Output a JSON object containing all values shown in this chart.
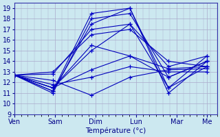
{
  "xlabel": "Température (°c)",
  "background_color": "#cce8f0",
  "grid_color": "#aaaacc",
  "line_color": "#0000bb",
  "marker_color": "#0000cc",
  "ylim": [
    9,
    19.5
  ],
  "yticks": [
    9,
    10,
    11,
    12,
    13,
    14,
    15,
    16,
    17,
    18,
    19
  ],
  "day_labels": [
    "Ven",
    "Sam",
    "Dim",
    "Lun",
    "Mar",
    "Me"
  ],
  "day_ticks": [
    0,
    1,
    2,
    3,
    4,
    4.75
  ],
  "xlim": [
    0,
    5.0
  ],
  "series": [
    [
      12.7,
      12.2,
      10.8,
      12.5,
      13.2,
      13.3
    ],
    [
      12.7,
      11.8,
      12.5,
      13.5,
      13.0,
      13.0
    ],
    [
      12.7,
      11.5,
      13.2,
      14.5,
      13.3,
      13.5
    ],
    [
      12.7,
      11.5,
      15.5,
      14.5,
      12.5,
      14.0
    ],
    [
      12.7,
      11.5,
      15.0,
      17.5,
      11.5,
      13.5
    ],
    [
      12.7,
      11.2,
      17.5,
      19.0,
      11.0,
      14.0
    ],
    [
      12.7,
      11.2,
      18.5,
      19.0,
      11.5,
      14.5
    ],
    [
      12.7,
      11.0,
      18.0,
      18.5,
      12.5,
      14.0
    ],
    [
      12.7,
      12.8,
      17.0,
      17.5,
      13.5,
      14.5
    ],
    [
      12.7,
      13.0,
      16.5,
      17.0,
      14.0,
      13.5
    ]
  ]
}
